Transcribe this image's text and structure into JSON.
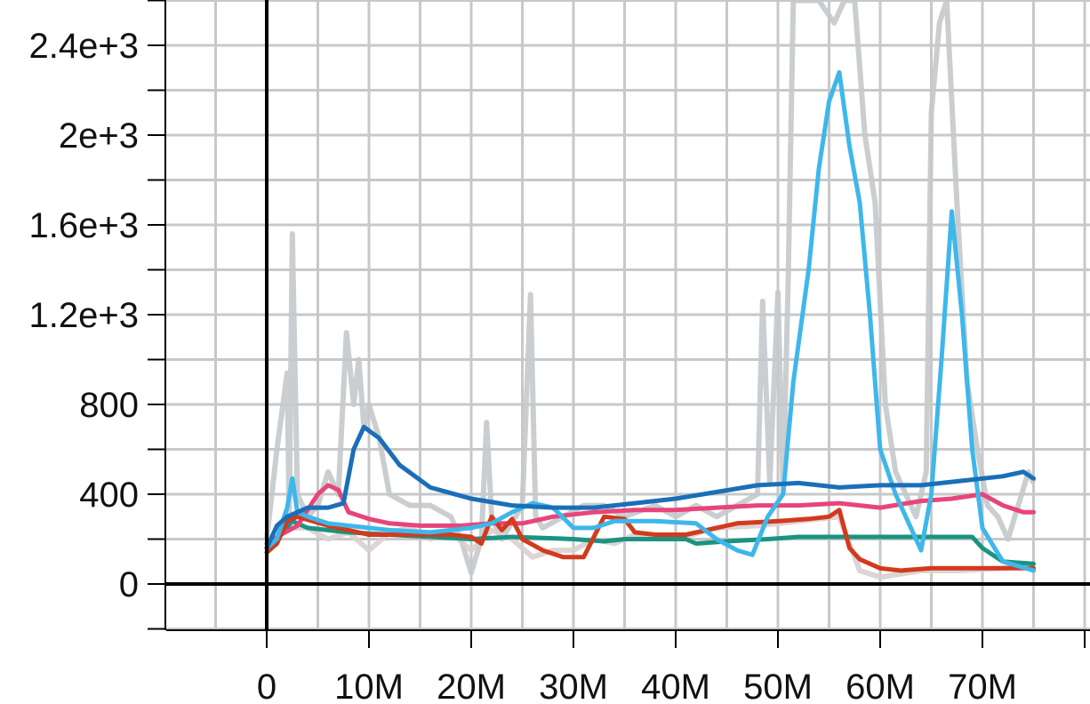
{
  "chart_data": {
    "type": "line",
    "title": "",
    "xlabel": "",
    "ylabel": "",
    "xlim": [
      -10000000,
      80000000
    ],
    "ylim": [
      -200,
      2600
    ],
    "grid": true,
    "x_ticks": [
      0,
      10000000,
      20000000,
      30000000,
      40000000,
      50000000,
      60000000,
      70000000
    ],
    "x_tick_labels": [
      "0",
      "10M",
      "20M",
      "30M",
      "40M",
      "50M",
      "60M",
      "70M"
    ],
    "y_ticks": [
      0,
      400,
      800,
      1200,
      1600,
      2000,
      2400
    ],
    "y_tick_labels": [
      "0",
      "400",
      "800",
      "1.2e+3",
      "1.6e+3",
      "2e+3",
      "2.4e+3"
    ],
    "colors": {
      "raw": "#c4c9cc",
      "raw_faint": "#d9cfcf",
      "axis": "#000000",
      "grid": "#c8c8c8",
      "teal": "#1a9480",
      "pink": "#e8457a",
      "orange": "#d23a1e",
      "lightblue": "#3eb7ea",
      "darkblue": "#1a6fb8"
    },
    "raw_series": [
      {
        "color_key": "raw",
        "points": [
          [
            0,
            200
          ],
          [
            1000000,
            600
          ],
          [
            2000000,
            940
          ],
          [
            2200000,
            300
          ],
          [
            2500000,
            1560
          ],
          [
            3000000,
            400
          ],
          [
            4000000,
            300
          ],
          [
            5000000,
            350
          ],
          [
            6000000,
            500
          ],
          [
            7000000,
            400
          ],
          [
            7800000,
            1120
          ],
          [
            8500000,
            800
          ],
          [
            9000000,
            1000
          ],
          [
            9500000,
            700
          ],
          [
            10000000,
            800
          ],
          [
            11000000,
            650
          ],
          [
            12000000,
            400
          ],
          [
            14000000,
            350
          ],
          [
            16000000,
            350
          ],
          [
            18000000,
            300
          ],
          [
            19000000,
            200
          ],
          [
            20000000,
            50
          ],
          [
            21000000,
            200
          ],
          [
            21500000,
            720
          ],
          [
            22000000,
            300
          ],
          [
            23000000,
            200
          ],
          [
            25000000,
            350
          ],
          [
            25800000,
            1290
          ],
          [
            26300000,
            300
          ],
          [
            27000000,
            250
          ],
          [
            29000000,
            300
          ],
          [
            31000000,
            350
          ],
          [
            33000000,
            350
          ],
          [
            35000000,
            300
          ],
          [
            38000000,
            350
          ],
          [
            40000000,
            300
          ],
          [
            42000000,
            350
          ],
          [
            44000000,
            300
          ],
          [
            46000000,
            350
          ],
          [
            48000000,
            400
          ],
          [
            48500000,
            1260
          ],
          [
            49200000,
            450
          ],
          [
            50000000,
            1300
          ],
          [
            50500000,
            400
          ],
          [
            51000000,
            1350
          ],
          [
            51500000,
            2600
          ],
          [
            52500000,
            2600
          ],
          [
            54000000,
            2600
          ],
          [
            55500000,
            2500
          ],
          [
            56500000,
            2600
          ],
          [
            57500000,
            2600
          ],
          [
            58500000,
            2000
          ],
          [
            59500000,
            1700
          ],
          [
            60500000,
            800
          ],
          [
            61500000,
            500
          ],
          [
            62500000,
            400
          ],
          [
            63500000,
            300
          ],
          [
            64500000,
            500
          ],
          [
            65000000,
            2100
          ],
          [
            65800000,
            2500
          ],
          [
            66500000,
            2600
          ],
          [
            67500000,
            1700
          ],
          [
            68500000,
            900
          ],
          [
            69500000,
            600
          ],
          [
            70500000,
            350
          ],
          [
            71500000,
            300
          ],
          [
            72500000,
            200
          ],
          [
            73500000,
            350
          ],
          [
            74500000,
            500
          ],
          [
            75000000,
            450
          ]
        ]
      },
      {
        "color_key": "raw_faint",
        "points": [
          [
            0,
            160
          ],
          [
            2000000,
            250
          ],
          [
            4000000,
            250
          ],
          [
            6000000,
            200
          ],
          [
            8000000,
            230
          ],
          [
            10000000,
            150
          ],
          [
            12000000,
            230
          ],
          [
            14000000,
            250
          ],
          [
            16000000,
            200
          ],
          [
            18000000,
            230
          ],
          [
            20000000,
            150
          ],
          [
            22000000,
            240
          ],
          [
            24000000,
            200
          ],
          [
            26000000,
            120
          ],
          [
            28000000,
            150
          ],
          [
            30000000,
            150
          ],
          [
            32000000,
            200
          ],
          [
            34000000,
            180
          ],
          [
            36000000,
            220
          ],
          [
            40000000,
            200
          ],
          [
            44000000,
            250
          ],
          [
            48000000,
            260
          ],
          [
            52000000,
            280
          ],
          [
            56000000,
            300
          ],
          [
            58000000,
            60
          ],
          [
            60000000,
            30
          ],
          [
            64000000,
            60
          ],
          [
            68000000,
            60
          ],
          [
            72000000,
            70
          ],
          [
            75000000,
            90
          ]
        ]
      }
    ],
    "series": [
      {
        "color_key": "teal",
        "points": [
          [
            0,
            180
          ],
          [
            1000000,
            200
          ],
          [
            2500000,
            280
          ],
          [
            4000000,
            250
          ],
          [
            8000000,
            230
          ],
          [
            12000000,
            220
          ],
          [
            16000000,
            210
          ],
          [
            20000000,
            200
          ],
          [
            24000000,
            210
          ],
          [
            30000000,
            200
          ],
          [
            33000000,
            190
          ],
          [
            35000000,
            200
          ],
          [
            41000000,
            200
          ],
          [
            42000000,
            180
          ],
          [
            45000000,
            190
          ],
          [
            49000000,
            200
          ],
          [
            52000000,
            210
          ],
          [
            57000000,
            210
          ],
          [
            65000000,
            210
          ],
          [
            69000000,
            210
          ],
          [
            70000000,
            160
          ],
          [
            72000000,
            100
          ],
          [
            75000000,
            90
          ]
        ]
      },
      {
        "color_key": "pink",
        "points": [
          [
            0,
            160
          ],
          [
            1000000,
            210
          ],
          [
            3000000,
            260
          ],
          [
            5000000,
            400
          ],
          [
            6000000,
            440
          ],
          [
            7000000,
            420
          ],
          [
            8000000,
            320
          ],
          [
            10000000,
            290
          ],
          [
            12000000,
            270
          ],
          [
            15000000,
            260
          ],
          [
            19000000,
            260
          ],
          [
            22000000,
            270
          ],
          [
            25000000,
            270
          ],
          [
            28000000,
            300
          ],
          [
            32000000,
            320
          ],
          [
            36000000,
            330
          ],
          [
            40000000,
            330
          ],
          [
            44000000,
            340
          ],
          [
            48000000,
            350
          ],
          [
            52000000,
            350
          ],
          [
            56000000,
            360
          ],
          [
            60000000,
            340
          ],
          [
            64000000,
            370
          ],
          [
            67000000,
            380
          ],
          [
            70000000,
            400
          ],
          [
            72000000,
            350
          ],
          [
            74000000,
            320
          ],
          [
            75000000,
            320
          ]
        ]
      },
      {
        "color_key": "orange",
        "points": [
          [
            0,
            140
          ],
          [
            1000000,
            180
          ],
          [
            2000000,
            280
          ],
          [
            3000000,
            300
          ],
          [
            6000000,
            260
          ],
          [
            8000000,
            240
          ],
          [
            10000000,
            220
          ],
          [
            14000000,
            220
          ],
          [
            18000000,
            220
          ],
          [
            20000000,
            210
          ],
          [
            21000000,
            180
          ],
          [
            22000000,
            300
          ],
          [
            23000000,
            240
          ],
          [
            24000000,
            290
          ],
          [
            25000000,
            200
          ],
          [
            27000000,
            150
          ],
          [
            29000000,
            120
          ],
          [
            31000000,
            120
          ],
          [
            33000000,
            300
          ],
          [
            35000000,
            290
          ],
          [
            36000000,
            230
          ],
          [
            38000000,
            220
          ],
          [
            41000000,
            220
          ],
          [
            43000000,
            240
          ],
          [
            46000000,
            270
          ],
          [
            50000000,
            280
          ],
          [
            53000000,
            290
          ],
          [
            55000000,
            300
          ],
          [
            56000000,
            330
          ],
          [
            57000000,
            160
          ],
          [
            58000000,
            110
          ],
          [
            60000000,
            70
          ],
          [
            62000000,
            60
          ],
          [
            65000000,
            70
          ],
          [
            70000000,
            70
          ],
          [
            75000000,
            70
          ]
        ]
      },
      {
        "color_key": "lightblue",
        "points": [
          [
            0,
            160
          ],
          [
            1000000,
            200
          ],
          [
            2000000,
            340
          ],
          [
            2500000,
            470
          ],
          [
            3000000,
            320
          ],
          [
            4000000,
            300
          ],
          [
            6000000,
            270
          ],
          [
            8000000,
            260
          ],
          [
            12000000,
            240
          ],
          [
            16000000,
            230
          ],
          [
            18000000,
            240
          ],
          [
            20000000,
            250
          ],
          [
            22000000,
            270
          ],
          [
            24000000,
            320
          ],
          [
            26000000,
            360
          ],
          [
            28000000,
            340
          ],
          [
            30000000,
            250
          ],
          [
            32000000,
            250
          ],
          [
            34000000,
            280
          ],
          [
            38000000,
            280
          ],
          [
            42000000,
            270
          ],
          [
            44000000,
            200
          ],
          [
            46000000,
            150
          ],
          [
            47500000,
            130
          ],
          [
            49000000,
            300
          ],
          [
            50500000,
            400
          ],
          [
            51500000,
            900
          ],
          [
            53000000,
            1400
          ],
          [
            54000000,
            1850
          ],
          [
            55000000,
            2150
          ],
          [
            56000000,
            2280
          ],
          [
            57000000,
            1950
          ],
          [
            58000000,
            1700
          ],
          [
            59000000,
            1200
          ],
          [
            60000000,
            600
          ],
          [
            61500000,
            400
          ],
          [
            63000000,
            250
          ],
          [
            64000000,
            150
          ],
          [
            65000000,
            400
          ],
          [
            66000000,
            1000
          ],
          [
            67000000,
            1660
          ],
          [
            68000000,
            1200
          ],
          [
            69000000,
            600
          ],
          [
            70000000,
            250
          ],
          [
            72000000,
            100
          ],
          [
            75000000,
            60
          ]
        ]
      },
      {
        "color_key": "darkblue",
        "points": [
          [
            0,
            160
          ],
          [
            1000000,
            260
          ],
          [
            2000000,
            300
          ],
          [
            4000000,
            340
          ],
          [
            6000000,
            340
          ],
          [
            7500000,
            360
          ],
          [
            8500000,
            600
          ],
          [
            9500000,
            700
          ],
          [
            11000000,
            650
          ],
          [
            13000000,
            530
          ],
          [
            16000000,
            430
          ],
          [
            20000000,
            380
          ],
          [
            24000000,
            350
          ],
          [
            28000000,
            340
          ],
          [
            32000000,
            340
          ],
          [
            36000000,
            360
          ],
          [
            40000000,
            380
          ],
          [
            44000000,
            410
          ],
          [
            48000000,
            440
          ],
          [
            52000000,
            450
          ],
          [
            56000000,
            430
          ],
          [
            60000000,
            440
          ],
          [
            64000000,
            440
          ],
          [
            68000000,
            460
          ],
          [
            72000000,
            480
          ],
          [
            74000000,
            500
          ],
          [
            75000000,
            470
          ]
        ]
      }
    ]
  }
}
